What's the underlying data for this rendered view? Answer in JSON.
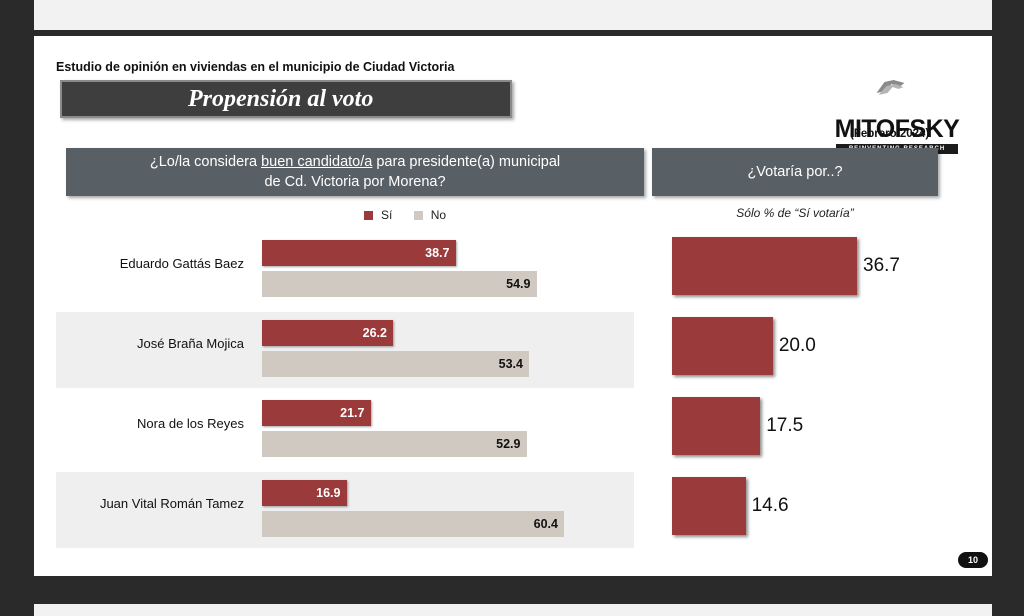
{
  "slide": {
    "study_title": "Estudio de opinión en viviendas en el municipio de Ciudad Victoria",
    "banner_title": "Propensión al voto",
    "logo_text": "MITOFSKY",
    "logo_tagline": "REINVENTING RESEARCH",
    "date": "(Febrero 2024)",
    "page_number": "10"
  },
  "left_question": {
    "line1_before": "¿Lo/la considera ",
    "line1_underlined": "buen candidato/a",
    "line1_after": " para presidente(a) municipal",
    "line2": "de Cd. Victoria por Morena?"
  },
  "right_question": {
    "title": "¿Votaría por..?",
    "note": "Sólo % de “Sí votaría”"
  },
  "colors": {
    "si": "#9a3a3a",
    "no": "#d0c9c2",
    "header": "#596065",
    "banner": "#3e3e3e"
  },
  "chart_data": [
    {
      "type": "bar",
      "orientation": "horizontal",
      "categories": [
        "Eduardo Gattás Baez",
        "José Braña Mojica",
        "Nora de los Reyes",
        "Juan Vital Román Tamez"
      ],
      "series": [
        {
          "name": "Sí",
          "values": [
            38.7,
            26.2,
            21.7,
            16.9
          ]
        },
        {
          "name": "No",
          "values": [
            54.9,
            53.4,
            52.9,
            60.4
          ]
        }
      ],
      "legend": [
        "Sí",
        "No"
      ],
      "legend_position": "top",
      "xlim": [
        0,
        100
      ]
    },
    {
      "type": "bar",
      "orientation": "horizontal",
      "categories": [
        "Eduardo Gattás Baez",
        "José Braña Mojica",
        "Nora de los Reyes",
        "Juan Vital Román Tamez"
      ],
      "values": [
        36.7,
        20.0,
        17.5,
        14.6
      ],
      "value_labels": [
        "36.7",
        "20.0",
        "17.5",
        "14.6"
      ],
      "xlim": [
        0,
        36.7
      ]
    }
  ]
}
